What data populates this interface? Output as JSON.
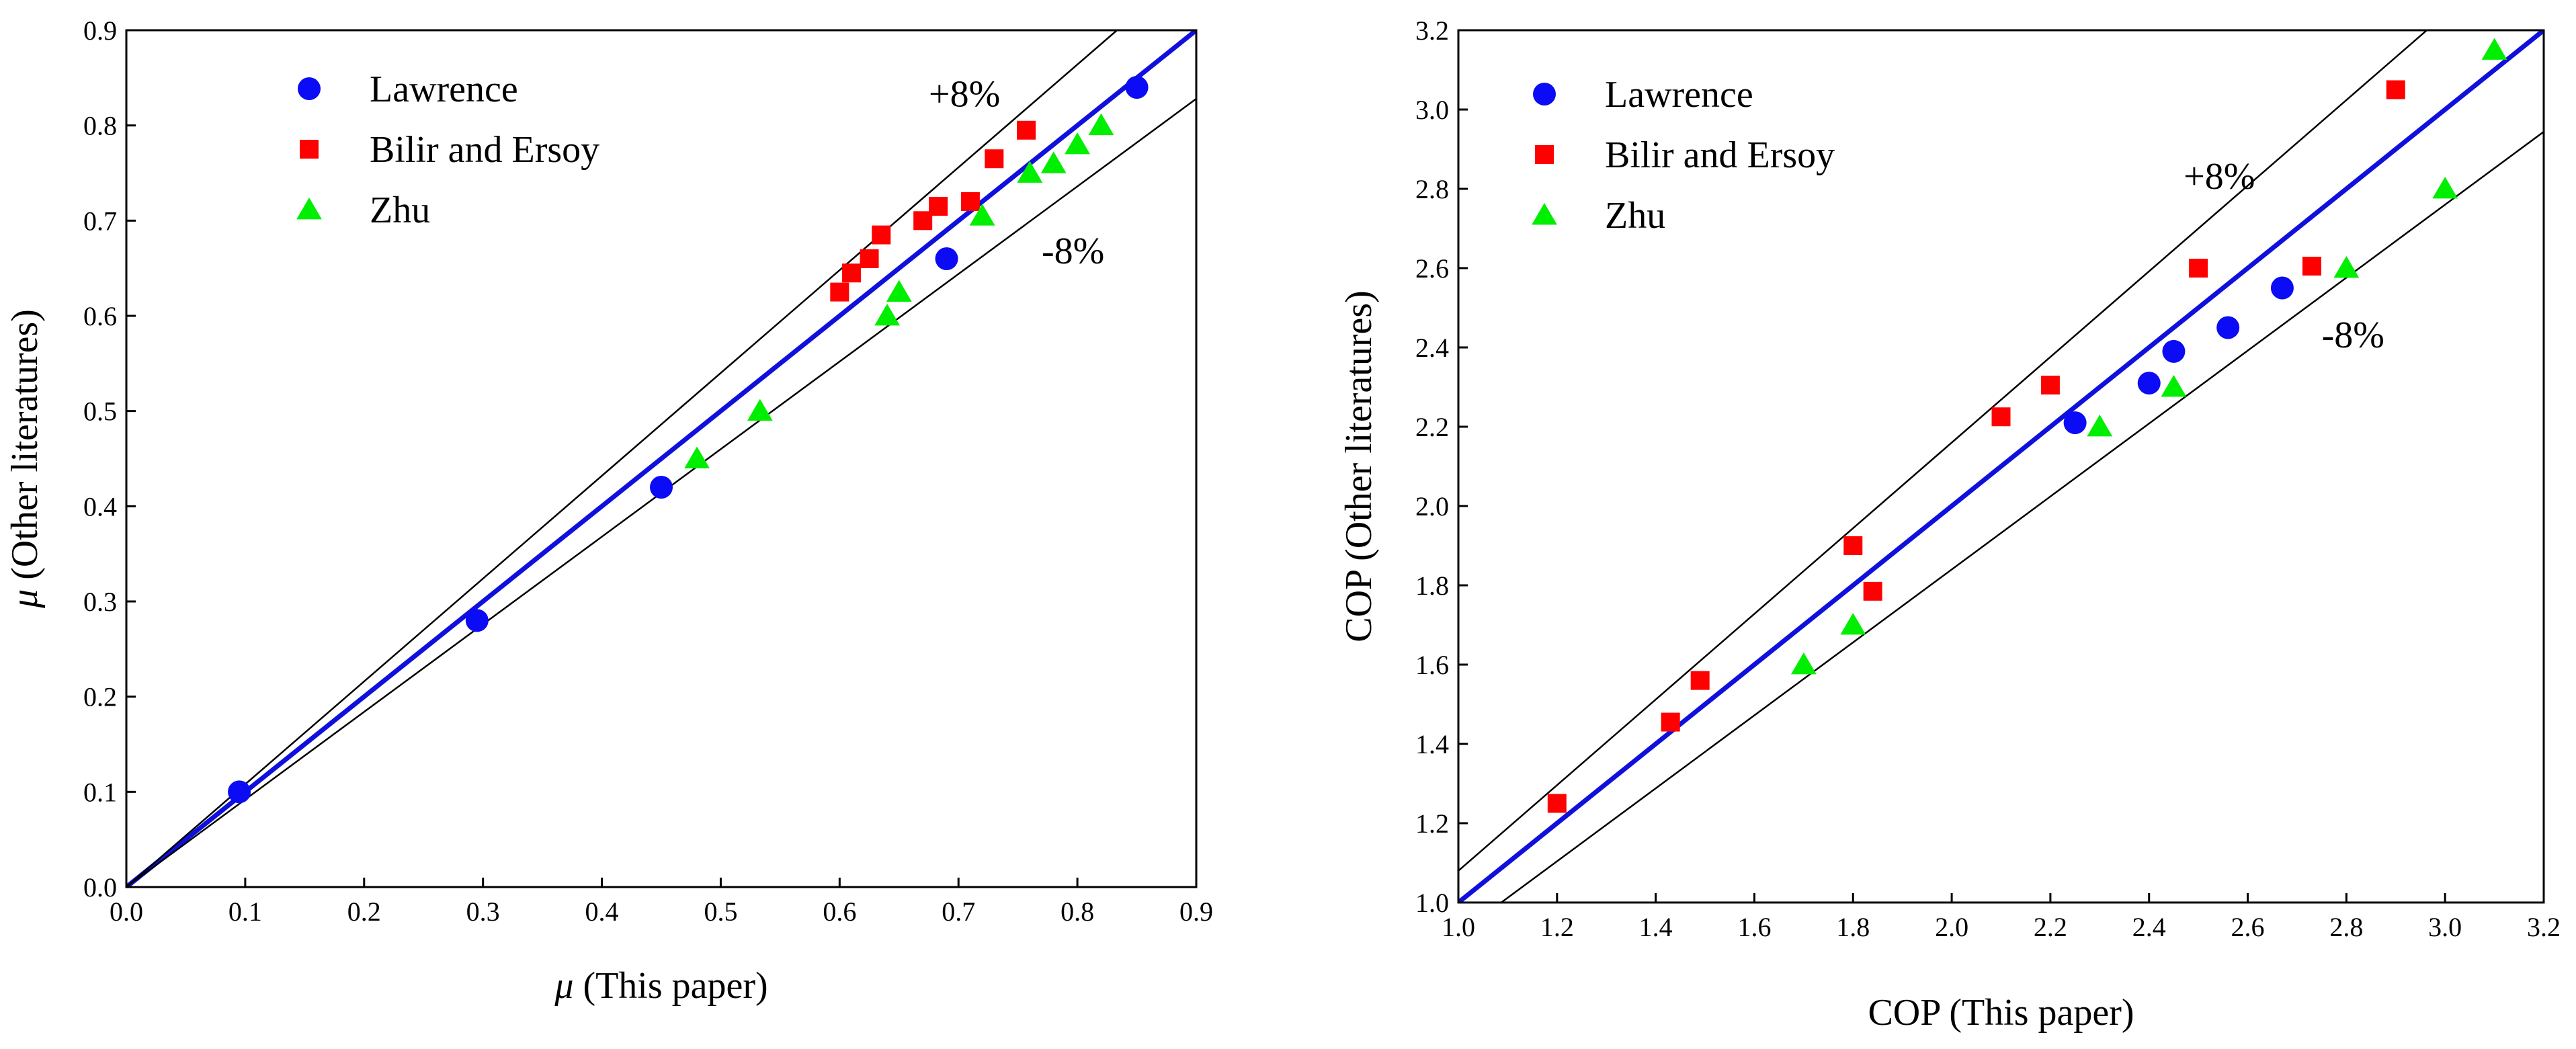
{
  "chart_data": [
    {
      "type": "scatter",
      "xlabel_symbol": "μ",
      "xlabel": " (This paper)",
      "ylabel_symbol": "μ",
      "ylabel": " (Other literatures)",
      "xlim": [
        0.0,
        0.9
      ],
      "ylim": [
        0.0,
        0.9
      ],
      "xticks": [
        0.0,
        0.1,
        0.2,
        0.3,
        0.4,
        0.5,
        0.6,
        0.7,
        0.8,
        0.9
      ],
      "yticks": [
        0.0,
        0.1,
        0.2,
        0.3,
        0.4,
        0.5,
        0.6,
        0.7,
        0.8,
        0.9
      ],
      "xtick_labels": [
        "0.0",
        "0.1",
        "0.2",
        "0.3",
        "0.4",
        "0.5",
        "0.6",
        "0.7",
        "0.8",
        "0.9"
      ],
      "ytick_labels": [
        "0.0",
        "0.1",
        "0.2",
        "0.3",
        "0.4",
        "0.5",
        "0.6",
        "0.7",
        "0.8",
        "0.9"
      ],
      "reference_lines": [
        {
          "name": "y=x",
          "slope": 1.0,
          "color": "#1010dd"
        },
        {
          "name": "+8%",
          "slope": 1.08,
          "color": "#000000"
        },
        {
          "name": "-8%",
          "slope": 0.92,
          "color": "#000000"
        }
      ],
      "annotations": [
        {
          "text": "+8%",
          "x": 0.675,
          "y": 0.82
        },
        {
          "text": "-8%",
          "x": 0.77,
          "y": 0.655
        }
      ],
      "series": [
        {
          "name": "Lawrence",
          "marker": "circle",
          "color": "#0b0bf5",
          "x": [
            0.095,
            0.295,
            0.45,
            0.69,
            0.85
          ],
          "y": [
            0.1,
            0.28,
            0.42,
            0.66,
            0.84
          ]
        },
        {
          "name": "Bilir and Ersoy",
          "marker": "square",
          "color": "#ff0000",
          "x": [
            0.6,
            0.61,
            0.625,
            0.635,
            0.67,
            0.683,
            0.71,
            0.73,
            0.757
          ],
          "y": [
            0.625,
            0.645,
            0.66,
            0.685,
            0.7,
            0.715,
            0.72,
            0.765,
            0.795
          ]
        },
        {
          "name": "Zhu",
          "marker": "triangle",
          "color": "#00ee00",
          "x": [
            0.48,
            0.533,
            0.64,
            0.65,
            0.72,
            0.76,
            0.78,
            0.8,
            0.82
          ],
          "y": [
            0.45,
            0.5,
            0.6,
            0.625,
            0.705,
            0.75,
            0.76,
            0.78,
            0.8
          ]
        }
      ]
    },
    {
      "type": "scatter",
      "xlabel_symbol": "",
      "xlabel": "COP (This paper)",
      "ylabel_symbol": "",
      "ylabel": "COP (Other literatures)",
      "xlim": [
        1.0,
        3.2
      ],
      "ylim": [
        1.0,
        3.2
      ],
      "xticks": [
        1.0,
        1.2,
        1.4,
        1.6,
        1.8,
        2.0,
        2.2,
        2.4,
        2.6,
        2.8,
        3.0,
        3.2
      ],
      "yticks": [
        1.0,
        1.2,
        1.4,
        1.6,
        1.8,
        2.0,
        2.2,
        2.4,
        2.6,
        2.8,
        3.0,
        3.2
      ],
      "xtick_labels": [
        "1.0",
        "1.2",
        "1.4",
        "1.6",
        "1.8",
        "2.0",
        "2.2",
        "2.4",
        "2.6",
        "2.8",
        "3.0",
        "3.2"
      ],
      "ytick_labels": [
        "1.0",
        "1.2",
        "1.4",
        "1.6",
        "1.8",
        "2.0",
        "2.2",
        "2.4",
        "2.6",
        "2.8",
        "3.0",
        "3.2"
      ],
      "reference_lines": [
        {
          "name": "y=x",
          "slope": 1.0,
          "color": "#1010dd"
        },
        {
          "name": "+8%",
          "slope": 1.08,
          "color": "#000000"
        },
        {
          "name": "-8%",
          "slope": 0.92,
          "color": "#000000"
        }
      ],
      "annotations": [
        {
          "text": "+8%",
          "x": 2.47,
          "y": 2.8
        },
        {
          "text": "-8%",
          "x": 2.75,
          "y": 2.4
        }
      ],
      "series": [
        {
          "name": "Lawrence",
          "marker": "circle",
          "color": "#0b0bf5",
          "x": [
            2.25,
            2.4,
            2.45,
            2.56,
            2.67
          ],
          "y": [
            2.21,
            2.31,
            2.39,
            2.45,
            2.55
          ]
        },
        {
          "name": "Bilir and Ersoy",
          "marker": "square",
          "color": "#ff0000",
          "x": [
            1.2,
            1.43,
            1.49,
            1.8,
            1.84,
            2.1,
            2.2,
            2.5,
            2.73,
            2.9
          ],
          "y": [
            1.25,
            1.455,
            1.56,
            1.9,
            1.785,
            2.225,
            2.305,
            2.6,
            2.605,
            3.05
          ]
        },
        {
          "name": "Zhu",
          "marker": "triangle",
          "color": "#00ee00",
          "x": [
            1.7,
            1.8,
            2.3,
            2.45,
            2.8,
            3.0,
            3.1
          ],
          "y": [
            1.6,
            1.7,
            2.2,
            2.3,
            2.6,
            2.8,
            3.15
          ]
        }
      ]
    }
  ]
}
